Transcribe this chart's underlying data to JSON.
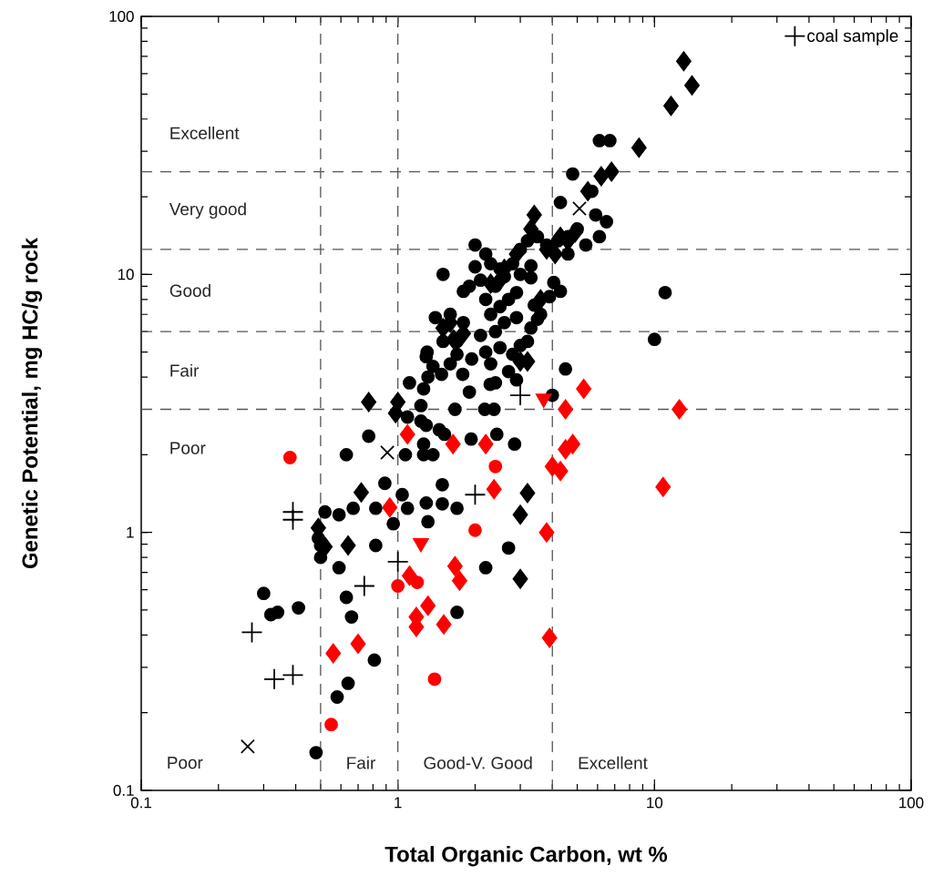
{
  "chart_data": {
    "type": "scatter",
    "xlabel": "Total Organic Carbon, wt %",
    "ylabel": "Genetic Potential, mg HC/g rock",
    "log": "xy",
    "xlim": [
      0.1,
      100
    ],
    "ylim": [
      0.1,
      100
    ],
    "xticks": [
      0.1,
      1,
      10,
      100
    ],
    "yticks": [
      0.1,
      1,
      10,
      100
    ],
    "legend": "top right",
    "series": [
      {
        "color": "#000000",
        "marker": "circle",
        "x": [
          0.3,
          0.32,
          0.34,
          0.41,
          0.48,
          0.58,
          0.64,
          0.81,
          0.66,
          0.63,
          0.59,
          0.82,
          0.5,
          1.7,
          2.2,
          2.7,
          1.5,
          1.4,
          1.29,
          1.37,
          1.48,
          1.7,
          1.79,
          1.94,
          2.29,
          1.11,
          1.31,
          1.26,
          1.23,
          1.67,
          2.18,
          2.37,
          1.09,
          1.23,
          1.29,
          1.45,
          1.52,
          1.93,
          2.43,
          2.85,
          0.77,
          0.63,
          1.07,
          1.26,
          1.26,
          1.37,
          0.89,
          1.49,
          1.7,
          1.49,
          1.29,
          1.04,
          1.09,
          0.82,
          0.67,
          0.59,
          0.52,
          0.96,
          1.31,
          0.49,
          0.5,
          6.1,
          6.7,
          4.8,
          4.3,
          6.5,
          6.1,
          11,
          10,
          4.5,
          4.0,
          4.05,
          4.3,
          3.3,
          3.4,
          3.5,
          3.2,
          2.0,
          2.2,
          2.3,
          2.5,
          2.1,
          1.9,
          2.4,
          2.6,
          2.8,
          3.0,
          3.2,
          3.5,
          3.8,
          4.2,
          4.6,
          5.0,
          2.7,
          2.9,
          2.2,
          2.5,
          2.3,
          2.6,
          2.9,
          2.4,
          2.1,
          1.8,
          1.6,
          1.7,
          2.2,
          2.5,
          2.8,
          3.0,
          2.7,
          2.3,
          1.9,
          2.4,
          2.9,
          1.5,
          1.3,
          1.6,
          3.3,
          3.6,
          3.9,
          4.6,
          5.4,
          5.9,
          5.7,
          3.0,
          3.3,
          2.0,
          1.8
        ],
        "values": [
          0.58,
          0.48,
          0.49,
          0.51,
          0.14,
          0.23,
          0.26,
          0.32,
          0.47,
          0.56,
          0.73,
          0.89,
          0.89,
          0.49,
          0.73,
          0.87,
          10,
          6.8,
          4.8,
          4.4,
          4.1,
          4.9,
          4.1,
          4.7,
          3.75,
          3.8,
          4.0,
          3.6,
          3.1,
          3.0,
          3.0,
          3.0,
          2.8,
          2.7,
          2.6,
          2.5,
          2.4,
          2.3,
          2.4,
          2.2,
          2.36,
          2.0,
          2.0,
          2.2,
          2.0,
          2.0,
          1.55,
          1.53,
          1.24,
          1.29,
          1.3,
          1.4,
          1.24,
          1.24,
          1.24,
          1.17,
          1.2,
          1.08,
          1.1,
          0.95,
          0.8,
          33,
          33,
          24.5,
          19,
          16,
          14,
          8.5,
          5.6,
          4.3,
          3.4,
          9.3,
          8.6,
          9.7,
          7.6,
          6.7,
          5.5,
          13,
          12,
          11,
          10.5,
          9.5,
          9,
          9,
          9.8,
          11,
          12.5,
          13.5,
          14,
          13,
          13.5,
          14,
          15,
          8,
          8.5,
          8,
          7.5,
          7,
          6.5,
          6.8,
          6,
          5.8,
          6.5,
          7,
          5.5,
          5,
          5.2,
          4.9,
          5.3,
          4.2,
          4.5,
          3.5,
          3.8,
          3.9,
          5.5,
          5.0,
          4.5,
          6.2,
          7,
          8.2,
          12,
          13,
          17,
          21,
          10,
          10.8,
          10.7,
          8.6
        ]
      },
      {
        "color": "#000000",
        "marker": "diamond",
        "x": [
          1.5,
          1.6,
          1.7,
          1.8,
          1.65,
          2.5,
          2.6,
          2.3,
          2.9,
          3.3,
          3.5,
          3.8,
          4.3,
          4.6,
          4.9,
          4.1,
          3.4,
          6.8,
          6.2,
          5.5,
          8.7,
          11.6,
          13,
          14,
          3.2,
          3.6,
          3.0,
          0.77,
          1.0,
          0.98,
          0.72,
          3.2,
          3.0,
          3.0,
          0.52,
          0.64,
          0.49
        ],
        "values": [
          6.2,
          6.5,
          null,
          5.9,
          5.6,
          9.5,
          10.5,
          9.2,
          12,
          15,
          null,
          12.5,
          14,
          13.5,
          14.5,
          12,
          17,
          25,
          24,
          21,
          31,
          45,
          67,
          54,
          4.6,
          8,
          4.6,
          3.2,
          3.2,
          2.9,
          1.43,
          1.42,
          1.17,
          0.66,
          0.88,
          0.89,
          1.04
        ]
      },
      {
        "color": "#000000",
        "marker": "x",
        "x": [
          0.91,
          0.26,
          5.1
        ],
        "values": [
          2.04,
          0.148,
          18
        ]
      },
      {
        "name": "coal sample",
        "color": "#000000",
        "marker": "cross",
        "x": [
          0.27,
          0.33,
          0.39,
          0.74,
          1.0,
          0.39,
          0.39,
          2.0,
          3.0
        ],
        "values": [
          0.41,
          0.27,
          0.28,
          0.62,
          0.77,
          1.2,
          1.12,
          1.4,
          3.4
        ]
      },
      {
        "color": "#ff0000",
        "marker": "circle",
        "x": [
          0.38,
          2.4,
          2.0,
          1.0,
          1.19,
          1.39,
          0.55
        ],
        "values": [
          1.95,
          1.8,
          1.02,
          0.62,
          0.64,
          0.27,
          0.18
        ]
      },
      {
        "color": "#ff0000",
        "marker": "diamond",
        "x": [
          1.09,
          1.64,
          2.2,
          2.37,
          0.93,
          5.3,
          4.5,
          12.5,
          4.8,
          4.5,
          4.0,
          4.3,
          10.8,
          3.8,
          3.9,
          1.67,
          1.74,
          1.18,
          1.31,
          1.18,
          1.51,
          1.11,
          0.56,
          0.7
        ],
        "values": [
          2.4,
          2.2,
          2.2,
          1.47,
          1.25,
          3.6,
          3.0,
          3.0,
          2.2,
          2.1,
          1.8,
          1.73,
          1.5,
          1.0,
          0.39,
          0.74,
          0.65,
          0.47,
          0.52,
          0.43,
          0.44,
          0.68,
          0.34,
          0.37
        ]
      },
      {
        "color": "#ff0000",
        "marker": "triangle",
        "x": [
          1.23,
          3.7
        ],
        "values": [
          0.91,
          3.3
        ]
      }
    ],
    "ref_lines": [
      {
        "axis": "x",
        "value": 0.5,
        "line_style": "dashed"
      },
      {
        "axis": "x",
        "value": 1,
        "line_style": "dashed"
      },
      {
        "axis": "x",
        "value": 4,
        "line_style": "dashed"
      },
      {
        "axis": "y",
        "value": 3,
        "line_style": "dashed"
      },
      {
        "axis": "y",
        "value": 6,
        "line_style": "dashed"
      },
      {
        "axis": "y",
        "value": 12.5,
        "line_style": "dashed"
      },
      {
        "axis": "y",
        "value": 25,
        "line_style": "dashed"
      }
    ],
    "annotations": [
      "Excellent",
      "Very good",
      "Good",
      "Fair",
      "Poor",
      "Poor",
      "Fair",
      "Good-V. Good",
      "Excellent"
    ]
  }
}
